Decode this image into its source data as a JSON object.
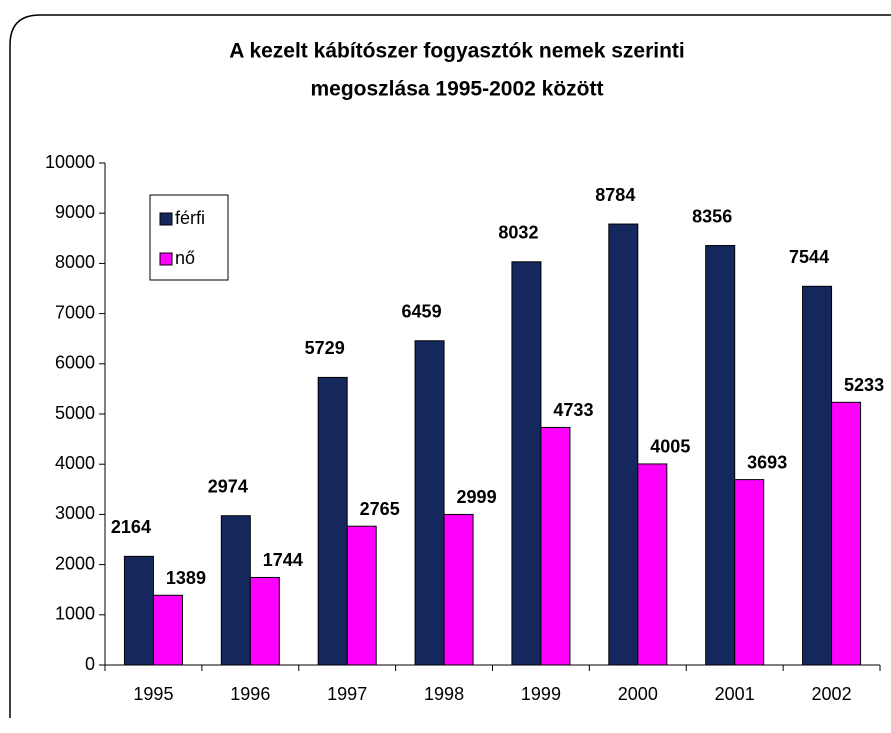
{
  "chart_data": {
    "type": "bar",
    "title": [
      "A kezelt kábítószer fogyasztók nemek szerinti",
      "megoszlása 1995-2002 között"
    ],
    "categories": [
      "1995",
      "1996",
      "1997",
      "1998",
      "1999",
      "2000",
      "2001",
      "2002"
    ],
    "series": [
      {
        "name": "férfi",
        "color": "#14285e",
        "label_color": "#1a237e",
        "values": [
          2164,
          2974,
          5729,
          6459,
          8032,
          8784,
          8356,
          7544
        ]
      },
      {
        "name": "nő",
        "color": "#ff00ff",
        "label_color": "#ff00ff",
        "values": [
          1389,
          1744,
          2765,
          2999,
          4733,
          4005,
          3693,
          5233
        ]
      }
    ],
    "ylim": [
      0,
      10000
    ],
    "yticks": [
      0,
      1000,
      2000,
      3000,
      4000,
      5000,
      6000,
      7000,
      8000,
      9000,
      10000
    ],
    "legend": "top-left"
  }
}
